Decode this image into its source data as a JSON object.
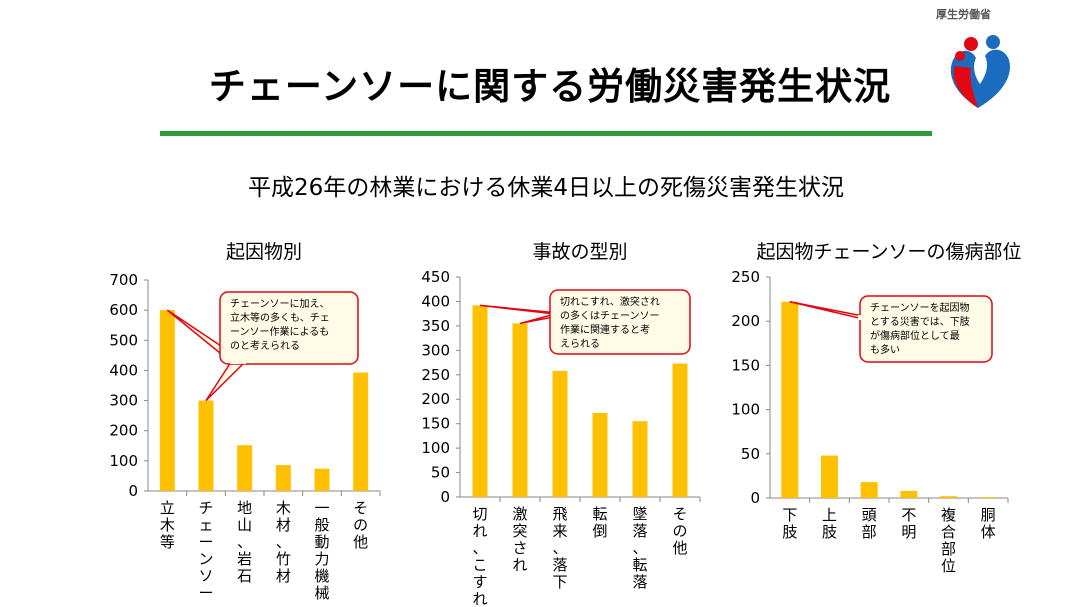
{
  "header": {
    "ministry": "厚生労働省",
    "title": "チェーンソーに関する労働災害発生状況",
    "subtitle": "平成26年の林業における休業4日以上の死傷災害発生状況"
  },
  "colors": {
    "bar": "#ffc000",
    "accent_rule": "#2e9b3a",
    "callout_border": "#e30613",
    "callout_fill": "#fffbe6"
  },
  "chart_data": [
    {
      "type": "bar",
      "title": "起因物別",
      "categories": [
        "立木等",
        "チェーンソー",
        "地山、岩石",
        "木材、竹材",
        "一般動力機械",
        "その他"
      ],
      "values": [
        600,
        300,
        152,
        86,
        74,
        393
      ],
      "ylim": [
        0,
        700
      ],
      "yticks": [
        "0",
        "100",
        "200",
        "300",
        "400",
        "500",
        "600",
        "700"
      ],
      "callout": {
        "lines": [
          "チェーンソーに加え、",
          "立木等の多くも、チェ",
          "ーンソー作業によるも",
          "のと考えられる"
        ],
        "targets": [
          0,
          1
        ]
      }
    },
    {
      "type": "bar",
      "title": "事故の型別",
      "categories": [
        "切れ、こすれ",
        "激突され",
        "飛来、落下",
        "転倒",
        "墜落、転落",
        "その他"
      ],
      "values": [
        392,
        355,
        258,
        172,
        155,
        273
      ],
      "ylim": [
        0,
        450
      ],
      "yticks": [
        "0",
        "50",
        "100",
        "150",
        "200",
        "250",
        "300",
        "350",
        "400",
        "450"
      ],
      "callout": {
        "lines": [
          "切れこすれ、激突され",
          "の多くはチェーンソー",
          "作業に関連すると考",
          "えられる"
        ],
        "targets": [
          0,
          1
        ]
      }
    },
    {
      "type": "bar",
      "title": "起因物チェーンソーの傷病部位",
      "categories": [
        "下肢",
        "上肢",
        "頭部",
        "不明",
        "複合部位",
        "胴体"
      ],
      "values": [
        222,
        48,
        18,
        8,
        2,
        1
      ],
      "ylim": [
        0,
        250
      ],
      "yticks": [
        "0",
        "50",
        "100",
        "150",
        "200",
        "250"
      ],
      "callout": {
        "lines": [
          "チェーンソーを起因物",
          "とする災害では、下肢",
          "が傷病部位として最",
          "も多い"
        ],
        "targets": [
          0
        ]
      }
    }
  ]
}
